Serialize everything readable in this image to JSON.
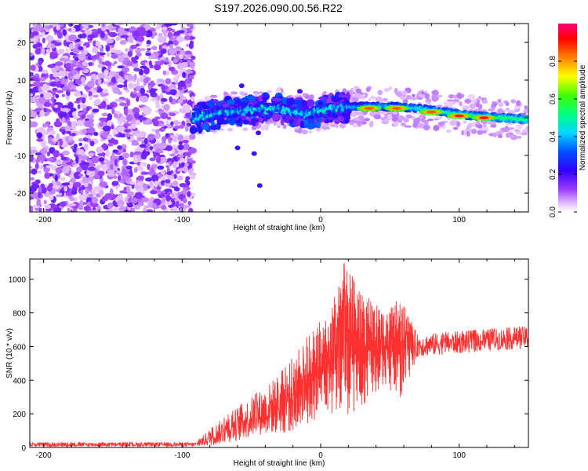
{
  "title": "S197.2026.090.00.56.R22",
  "colorbar_label": "Normalized spectral amplitude",
  "colormap": [
    "#ffffff",
    "#ff00ff",
    "#7a00ff",
    "#0000ff",
    "#00e0ff",
    "#00ff40",
    "#ffff00",
    "#ff8000",
    "#ff0000",
    "#ff0080"
  ],
  "chart_data": [
    {
      "type": "heatmap",
      "title": "",
      "xlabel": "Height of straight line (km)",
      "ylabel": "Frequency (Hz)",
      "xlim": [
        -210,
        150
      ],
      "ylim": [
        -25,
        25
      ],
      "xticks": [
        -200,
        -100,
        0,
        100
      ],
      "yticks": [
        -20,
        -10,
        0,
        10,
        20
      ],
      "xtick_labels": [
        "-200",
        "-100",
        "0",
        "100"
      ],
      "ytick_labels": [
        "-20",
        "-10",
        "0",
        "10",
        "20"
      ],
      "noise_region_km": [
        -210,
        -92
      ],
      "clean_region_km": [
        -92,
        150
      ],
      "ridge_center_hz": [
        [
          -90,
          0.0
        ],
        [
          -70,
          1.5
        ],
        [
          -50,
          2.0
        ],
        [
          -30,
          2.5
        ],
        [
          -10,
          1.0
        ],
        [
          10,
          2.5
        ],
        [
          30,
          3.0
        ],
        [
          50,
          3.0
        ],
        [
          70,
          2.5
        ],
        [
          90,
          1.5
        ],
        [
          110,
          0.5
        ],
        [
          130,
          0.0
        ],
        [
          150,
          -0.5
        ]
      ],
      "peak_amplitude_points": [
        {
          "x": 35,
          "y": 2.5,
          "amp": 0.85
        },
        {
          "x": 55,
          "y": 2.5,
          "amp": 0.85
        },
        {
          "x": 80,
          "y": 1.5,
          "amp": 0.85
        },
        {
          "x": 100,
          "y": 0.5,
          "amp": 0.9
        },
        {
          "x": 118,
          "y": 0.0,
          "amp": 0.95
        }
      ],
      "outliers": [
        {
          "x": -57,
          "y": 8.5
        },
        {
          "x": -60,
          "y": -8
        },
        {
          "x": -48,
          "y": -9.5
        },
        {
          "x": -44,
          "y": -18
        },
        {
          "x": -15,
          "y": 7
        },
        {
          "x": -45,
          "y": -4
        }
      ]
    },
    {
      "type": "colorbar",
      "range": [
        0,
        1
      ],
      "ticks": [
        0,
        0.2,
        0.4,
        0.6,
        0.8
      ],
      "tick_labels": [
        "0.0",
        "0.2",
        "0.4",
        "0.6",
        "0.8"
      ],
      "label": "Normalized spectral amplitude"
    },
    {
      "type": "line",
      "title": "",
      "xlabel": "Height of straight line (km)",
      "ylabel": "SNR (10 * v/v)",
      "xlim": [
        -210,
        150
      ],
      "ylim": [
        0,
        1120
      ],
      "xticks": [
        -200,
        -100,
        0,
        100
      ],
      "yticks": [
        0,
        200,
        400,
        600,
        800,
        1000
      ],
      "xtick_labels": [
        "-200",
        "-100",
        "0",
        "100"
      ],
      "ytick_labels": [
        "0",
        "200",
        "400",
        "600",
        "800",
        "1000"
      ],
      "color": "#ff3030",
      "series": [
        {
          "name": "SNR",
          "envelope": [
            {
              "x": -210,
              "low": 5,
              "high": 30
            },
            {
              "x": -90,
              "low": 5,
              "high": 30
            },
            {
              "x": -80,
              "low": 10,
              "high": 110
            },
            {
              "x": -60,
              "low": 40,
              "high": 240
            },
            {
              "x": -40,
              "low": 80,
              "high": 360
            },
            {
              "x": -25,
              "low": 80,
              "high": 480
            },
            {
              "x": -10,
              "low": 120,
              "high": 660
            },
            {
              "x": 0,
              "low": 200,
              "high": 750
            },
            {
              "x": 10,
              "low": 180,
              "high": 900
            },
            {
              "x": 16,
              "low": 150,
              "high": 1120
            },
            {
              "x": 30,
              "low": 250,
              "high": 920
            },
            {
              "x": 45,
              "low": 350,
              "high": 830
            },
            {
              "x": 58,
              "low": 300,
              "high": 880
            },
            {
              "x": 70,
              "low": 540,
              "high": 670
            },
            {
              "x": 100,
              "low": 560,
              "high": 690
            },
            {
              "x": 150,
              "low": 590,
              "high": 720
            }
          ]
        }
      ]
    }
  ]
}
